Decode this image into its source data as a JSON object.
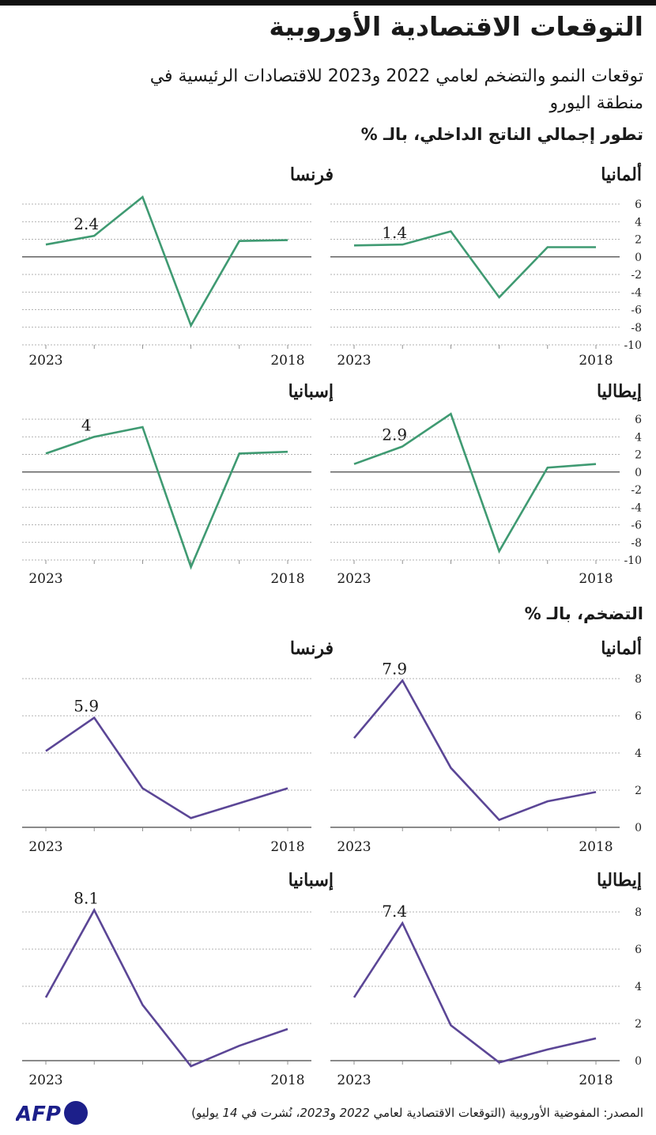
{
  "header": {
    "title": "التوقعات الاقتصادية الأوروبية",
    "subtitle": "توقعات النمو والتضخم لعامي 2022 و2023 للاقتصادات الرئيسية في منطقة اليورو"
  },
  "sections": {
    "gdp": "تطور إجمالي الناتج الداخلي، بالـ %",
    "inflation": "التضخم، بالـ %"
  },
  "footer": {
    "source_prefix": "المصدر: المفوضية الأوروبية (التوقعات الاقتصادية لعامي ",
    "year_2022": "2022",
    "and": " و",
    "year_2023": "2023",
    "published_prefix": "، نُشرت في ",
    "published_day": "14",
    "published_suffix": " يوليو)",
    "logo": "AFP"
  },
  "colors": {
    "gdp": "#3f9a72",
    "inflation": "#5b4696",
    "grid": "#999999",
    "axis": "#444444",
    "logo": "#1c1f8a"
  },
  "chart_data": [
    {
      "type": "line",
      "group": "gdp",
      "country": "ألمانيا",
      "x": [
        2018,
        2019,
        2020,
        2021,
        2022,
        2023
      ],
      "values": [
        1.1,
        1.1,
        -4.6,
        2.9,
        1.4,
        1.3
      ],
      "ylim": [
        -10,
        6
      ],
      "yticks": [
        6,
        4,
        2,
        0,
        -2,
        -4,
        -6,
        -8,
        -10
      ],
      "xticks": [
        "2018",
        "2023"
      ],
      "label": "1.4",
      "show_yticks": true
    },
    {
      "type": "line",
      "group": "gdp",
      "country": "فرنسا",
      "x": [
        2018,
        2019,
        2020,
        2021,
        2022,
        2023
      ],
      "values": [
        1.9,
        1.8,
        -7.8,
        6.8,
        2.4,
        1.4
      ],
      "ylim": [
        -10,
        6
      ],
      "yticks": [
        6,
        4,
        2,
        0,
        -2,
        -4,
        -6,
        -8,
        -10
      ],
      "xticks": [
        "2018",
        "2023"
      ],
      "label": "2.4",
      "show_yticks": false
    },
    {
      "type": "line",
      "group": "gdp",
      "country": "إيطاليا",
      "x": [
        2018,
        2019,
        2020,
        2021,
        2022,
        2023
      ],
      "values": [
        0.9,
        0.5,
        -9.0,
        6.6,
        2.9,
        0.9
      ],
      "ylim": [
        -10,
        6
      ],
      "yticks": [
        6,
        4,
        2,
        0,
        -2,
        -4,
        -6,
        -8,
        -10
      ],
      "xticks": [
        "2018",
        "2023"
      ],
      "label": "2.9",
      "show_yticks": true
    },
    {
      "type": "line",
      "group": "gdp",
      "country": "إسبانيا",
      "x": [
        2018,
        2019,
        2020,
        2021,
        2022,
        2023
      ],
      "values": [
        2.3,
        2.1,
        -10.8,
        5.1,
        4.0,
        2.1
      ],
      "ylim": [
        -10,
        6
      ],
      "yticks": [
        6,
        4,
        2,
        0,
        -2,
        -4,
        -6,
        -8,
        -10
      ],
      "xticks": [
        "2018",
        "2023"
      ],
      "label": "4",
      "show_yticks": false
    },
    {
      "type": "line",
      "group": "inflation",
      "country": "ألمانيا",
      "x": [
        2018,
        2019,
        2020,
        2021,
        2022,
        2023
      ],
      "values": [
        1.9,
        1.4,
        0.4,
        3.2,
        7.9,
        4.8
      ],
      "ylim": [
        0,
        8
      ],
      "yticks": [
        8,
        6,
        4,
        2,
        0
      ],
      "xticks": [
        "2018",
        "2023"
      ],
      "label": "7.9",
      "show_yticks": true
    },
    {
      "type": "line",
      "group": "inflation",
      "country": "فرنسا",
      "x": [
        2018,
        2019,
        2020,
        2021,
        2022,
        2023
      ],
      "values": [
        2.1,
        1.3,
        0.5,
        2.1,
        5.9,
        4.1
      ],
      "ylim": [
        0,
        8
      ],
      "yticks": [
        8,
        6,
        4,
        2,
        0
      ],
      "xticks": [
        "2018",
        "2023"
      ],
      "label": "5.9",
      "show_yticks": false
    },
    {
      "type": "line",
      "group": "inflation",
      "country": "إيطاليا",
      "x": [
        2018,
        2019,
        2020,
        2021,
        2022,
        2023
      ],
      "values": [
        1.2,
        0.6,
        -0.1,
        1.9,
        7.4,
        3.4
      ],
      "ylim": [
        0,
        8
      ],
      "yticks": [
        8,
        6,
        4,
        2,
        0
      ],
      "xticks": [
        "2018",
        "2023"
      ],
      "label": "7.4",
      "show_yticks": true
    },
    {
      "type": "line",
      "group": "inflation",
      "country": "إسبانيا",
      "x": [
        2018,
        2019,
        2020,
        2021,
        2022,
        2023
      ],
      "values": [
        1.7,
        0.8,
        -0.3,
        3.0,
        8.1,
        3.4
      ],
      "ylim": [
        0,
        8
      ],
      "yticks": [
        8,
        6,
        4,
        2,
        0
      ],
      "xticks": [
        "2018",
        "2023"
      ],
      "label": "8.1",
      "show_yticks": false
    }
  ]
}
